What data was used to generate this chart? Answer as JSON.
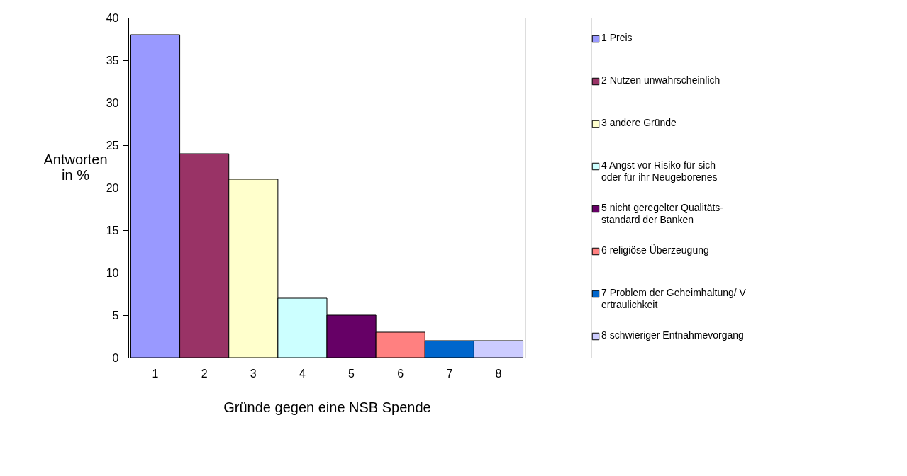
{
  "chart_data": {
    "type": "bar",
    "xlabel": "Gründe gegen eine NSB Spende",
    "ylabel": "Antworten in %",
    "categories": [
      "1",
      "2",
      "3",
      "4",
      "5",
      "6",
      "7",
      "8"
    ],
    "series": [
      {
        "name": "1 Preis",
        "color": "#9999ff",
        "values": [
          38,
          null,
          null,
          null,
          null,
          null,
          null,
          null
        ]
      },
      {
        "name": "2 Nutzen unwahrscheinlich",
        "color": "#993366",
        "values": [
          null,
          24,
          null,
          null,
          null,
          null,
          null,
          null
        ]
      },
      {
        "name": "3 andere Gründe",
        "color": "#ffffcc",
        "values": [
          null,
          null,
          21,
          null,
          null,
          null,
          null,
          null
        ]
      },
      {
        "name": "4 Angst vor Risiko für sich oder für ihr Neugeborenes",
        "color": "#ccffff",
        "values": [
          null,
          null,
          null,
          7,
          null,
          null,
          null,
          null
        ]
      },
      {
        "name": "5 nicht geregelter Qualitäts- standard der Banken",
        "color": "#660066",
        "values": [
          null,
          null,
          null,
          null,
          5,
          null,
          null,
          null
        ]
      },
      {
        "name": "6 religiöse Überzeugung",
        "color": "#ff8080",
        "values": [
          null,
          null,
          null,
          null,
          null,
          3,
          null,
          null
        ]
      },
      {
        "name": "7 Problem der Geheimhaltung/ V ertraulichkeit",
        "color": "#0066cc",
        "values": [
          null,
          null,
          null,
          null,
          null,
          null,
          2,
          null
        ]
      },
      {
        "name": "8 schwieriger Entnahmevorgang",
        "color": "#ccccff",
        "values": [
          null,
          null,
          null,
          null,
          null,
          null,
          null,
          2
        ]
      }
    ],
    "ylim": [
      0,
      40
    ],
    "yticks": [
      0,
      5,
      10,
      15,
      20,
      25,
      30,
      35,
      40
    ],
    "grid": false,
    "legend": "right"
  }
}
